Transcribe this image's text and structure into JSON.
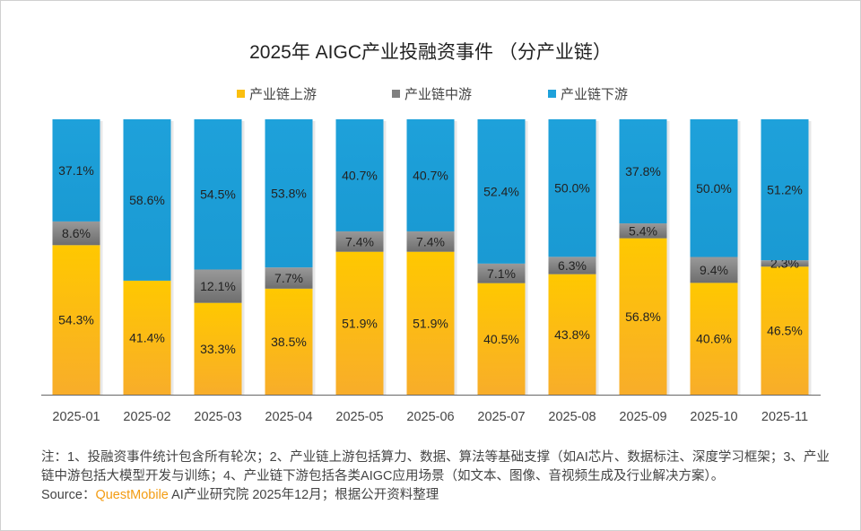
{
  "title": "2025年 AIGC产业投融资事件 （分产业链）",
  "chart_data": {
    "type": "bar",
    "stacked": true,
    "percent": true,
    "title": "2025年 AIGC产业投融资事件 （分产业链）",
    "categories": [
      "2025-01",
      "2025-02",
      "2025-03",
      "2025-04",
      "2025-05",
      "2025-06",
      "2025-07",
      "2025-08",
      "2025-09",
      "2025-10",
      "2025-11"
    ],
    "series": [
      {
        "name": "产业链上游",
        "color": "#fbbf0f",
        "values": [
          54.3,
          41.4,
          33.3,
          38.5,
          51.9,
          51.9,
          40.5,
          43.8,
          56.8,
          40.6,
          46.5
        ]
      },
      {
        "name": "产业链中游",
        "color": "#808080",
        "values": [
          8.6,
          0,
          12.1,
          7.7,
          7.4,
          7.4,
          7.1,
          6.3,
          5.4,
          9.4,
          2.3
        ]
      },
      {
        "name": "产业链下游",
        "color": "#1ea1da",
        "values": [
          37.1,
          58.6,
          54.5,
          53.8,
          40.7,
          40.7,
          52.4,
          50.0,
          37.8,
          50.0,
          51.2
        ]
      }
    ],
    "ylim": [
      0,
      100
    ],
    "grid": false,
    "legend": "top"
  },
  "legend": [
    "产业链上游",
    "产业链中游",
    "产业链下游"
  ],
  "footer": {
    "note": "注：1、投融资事件统计包含所有轮次；2、产业链上游包括算力、数据、算法等基础支撑（如AI芯片、数据标注、深度学习框架；3、产业链中游包括大模型开发与训练；4、产业链下游包括各类AIGC应用场景（如文本、图像、音视频生成及行业解决方案）。",
    "source_label": "Source：",
    "source_brand": "QuestMobile",
    "source_rest": " AI产业研究院 2025年12月；根据公开资料整理"
  }
}
